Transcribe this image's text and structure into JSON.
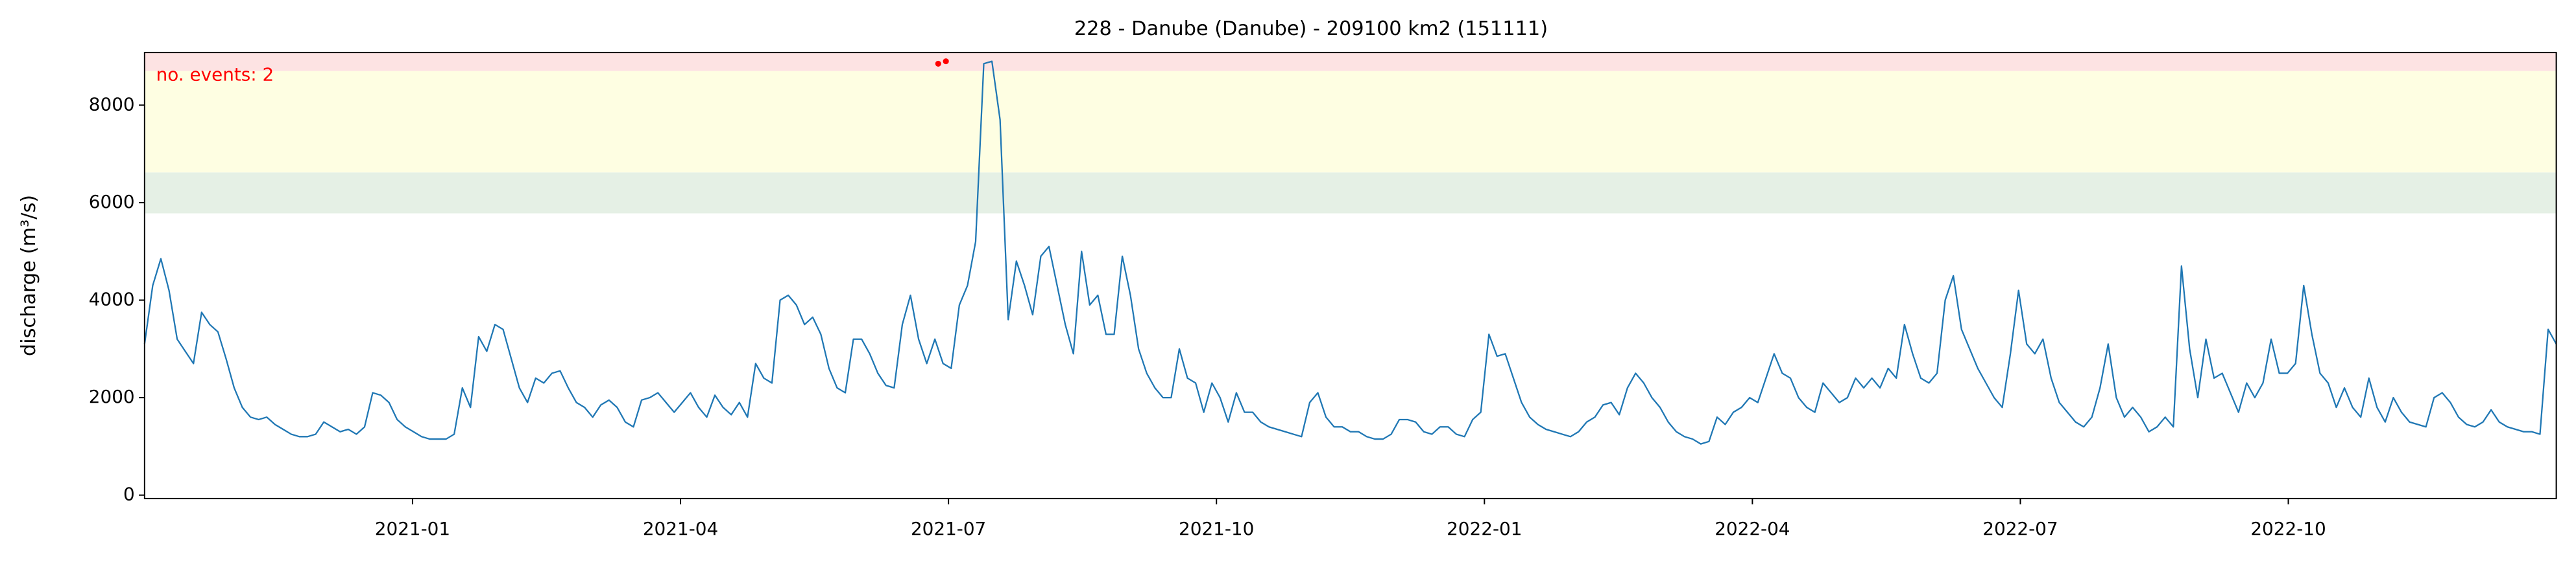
{
  "chart_data": {
    "type": "line",
    "title": "228 - Danube (Danube) - 209100 km2 (151111)",
    "y_label": "discharge (m³/s)",
    "annotation": "no. events: 2",
    "xlim": [
      "2020-10",
      "2023-01"
    ],
    "xticks": [
      "2021-01",
      "2021-04",
      "2021-07",
      "2021-10",
      "2022-01",
      "2022-04",
      "2022-07",
      "2022-10"
    ],
    "ylim": [
      -70,
      9080
    ],
    "yticks": [
      0,
      2000,
      4000,
      6000,
      8000
    ],
    "bands": [
      {
        "from": 5780,
        "color": "#e5f0e5"
      },
      {
        "from": 6620,
        "color": "#fefee2"
      },
      {
        "from": 8700,
        "color": "#fde3e3"
      }
    ],
    "series": [
      {
        "color": "#1f77b4",
        "values": [
          3100,
          4300,
          4850,
          4200,
          3200,
          2950,
          2700,
          3750,
          3500,
          3350,
          2800,
          2200,
          1800,
          1600,
          1550,
          1600,
          1450,
          1350,
          1250,
          1200,
          1200,
          1250,
          1500,
          1400,
          1300,
          1350,
          1250,
          1400,
          2100,
          2050,
          1900,
          1550,
          1400,
          1300,
          1200,
          1150,
          1150,
          1150,
          1250,
          2200,
          1800,
          3250,
          2950,
          3500,
          3400,
          2800,
          2200,
          1900,
          2400,
          2300,
          2500,
          2550,
          2200,
          1900,
          1800,
          1600,
          1850,
          1950,
          1800,
          1500,
          1400,
          1950,
          2000,
          2100,
          1900,
          1700,
          1900,
          2100,
          1800,
          1600,
          2050,
          1800,
          1650,
          1900,
          1600,
          2700,
          2400,
          2300,
          4000,
          4100,
          3900,
          3500,
          3650,
          3300,
          2600,
          2200,
          2100,
          3200,
          3200,
          2900,
          2500,
          2250,
          2200,
          3500,
          4100,
          3200,
          2700,
          3200,
          2700,
          2600,
          3900,
          4300,
          5200,
          8850,
          8900,
          7700,
          3600,
          4800,
          4300,
          3700,
          4900,
          5100,
          4300,
          3500,
          2900,
          5000,
          3900,
          4100,
          3300,
          3300,
          4900,
          4100,
          3000,
          2500,
          2200,
          2000,
          2000,
          3000,
          2400,
          2300,
          1700,
          2300,
          2000,
          1500,
          2100,
          1700,
          1700,
          1500,
          1400,
          1350,
          1300,
          1250,
          1200,
          1900,
          2100,
          1600,
          1400,
          1400,
          1300,
          1300,
          1200,
          1150,
          1150,
          1250,
          1550,
          1550,
          1500,
          1300,
          1250,
          1400,
          1400,
          1250,
          1200,
          1550,
          1700,
          3300,
          2850,
          2900,
          2400,
          1900,
          1600,
          1450,
          1350,
          1300,
          1250,
          1200,
          1300,
          1500,
          1600,
          1850,
          1900,
          1650,
          2200,
          2500,
          2300,
          2000,
          1800,
          1500,
          1300,
          1200,
          1150,
          1050,
          1100,
          1600,
          1450,
          1700,
          1800,
          2000,
          1900,
          2400,
          2900,
          2500,
          2400,
          2000,
          1800,
          1700,
          2300,
          2100,
          1900,
          2000,
          2400,
          2200,
          2400,
          2200,
          2600,
          2400,
          3500,
          2900,
          2400,
          2300,
          2500,
          4000,
          4500,
          3400,
          3000,
          2600,
          2300,
          2000,
          1800,
          2900,
          4200,
          3100,
          2900,
          3200,
          2400,
          1900,
          1700,
          1500,
          1400,
          1600,
          2200,
          3100,
          2000,
          1600,
          1800,
          1600,
          1300,
          1400,
          1600,
          1400,
          4700,
          3000,
          2000,
          3200,
          2400,
          2500,
          2100,
          1700,
          2300,
          2000,
          2300,
          3200,
          2500,
          2500,
          2700,
          4300,
          3300,
          2500,
          2300,
          1800,
          2200,
          1800,
          1600,
          2400,
          1800,
          1500,
          2000,
          1700,
          1500,
          1450,
          1400,
          2000,
          2100,
          1900,
          1600,
          1450,
          1400,
          1500,
          1750,
          1500,
          1400,
          1350,
          1300,
          1300,
          1250,
          3400,
          3100
        ]
      },
      {
        "color": "#ff0000",
        "values": [
          null,
          null,
          null,
          null,
          null,
          null,
          null,
          null,
          null,
          null,
          null,
          null,
          null,
          null,
          null,
          null,
          null,
          null,
          null,
          null,
          null,
          null,
          null,
          null,
          null,
          null,
          null,
          null,
          null,
          null,
          null,
          null,
          null,
          null,
          null,
          null,
          null,
          null,
          null,
          null,
          null,
          null,
          null,
          null,
          null,
          null,
          null,
          null,
          null,
          null,
          null,
          null,
          null,
          null,
          null,
          null,
          null,
          null,
          null,
          null,
          null,
          null,
          null,
          null,
          null,
          null,
          null,
          null,
          null,
          null,
          null,
          null,
          null,
          null,
          null,
          null,
          null,
          null,
          null,
          null,
          null,
          null,
          null,
          null,
          null,
          null,
          null,
          null,
          null,
          null,
          null,
          null,
          null,
          null,
          null,
          null,
          null,
          null,
          null,
          null,
          null,
          null,
          null,
          8850,
          8900,
          null,
          null,
          null,
          null,
          null,
          null,
          null,
          null,
          null,
          null,
          null,
          null,
          null,
          null,
          null,
          null,
          null,
          null,
          null,
          null,
          null,
          null,
          null,
          null,
          null,
          null,
          null,
          null,
          null,
          null,
          null,
          null,
          null,
          null,
          null,
          null,
          null,
          null,
          null,
          null,
          null,
          null,
          null,
          null,
          null,
          null,
          null,
          null,
          null,
          null,
          null,
          null,
          null,
          null,
          null,
          null,
          null,
          null,
          null,
          null,
          null,
          null,
          null,
          null,
          null,
          null,
          null,
          null,
          null,
          null,
          null,
          null,
          null,
          null,
          null,
          null,
          null,
          null,
          null,
          null,
          null,
          null,
          null,
          null,
          null,
          null,
          null,
          null,
          null,
          null,
          null,
          null,
          null,
          null,
          null,
          null,
          null,
          null,
          null,
          null,
          null,
          null,
          null,
          null,
          null,
          null,
          null,
          null,
          null,
          null,
          null,
          null,
          null,
          null,
          null,
          null,
          null,
          null,
          null,
          null,
          null,
          null,
          null,
          null,
          null,
          null,
          null,
          null,
          null,
          null,
          null,
          null,
          null,
          null,
          null,
          null,
          null,
          null,
          null,
          null,
          null,
          null,
          null,
          null,
          null,
          null,
          null,
          null,
          null,
          null,
          null,
          null,
          null,
          null,
          null,
          null,
          null,
          null,
          null,
          null,
          null,
          null,
          null,
          null,
          null,
          null,
          null,
          null,
          null,
          null,
          null,
          null,
          null,
          null,
          null,
          null,
          null,
          null,
          null,
          null,
          null,
          null,
          null,
          null,
          null,
          null,
          null,
          null,
          null,
          null,
          null,
          null,
          null,
          null,
          null,
          null,
          null,
          null,
          null,
          null,
          null,
          null,
          null,
          null,
          null,
          null,
          null,
          null,
          null
        ]
      }
    ]
  }
}
